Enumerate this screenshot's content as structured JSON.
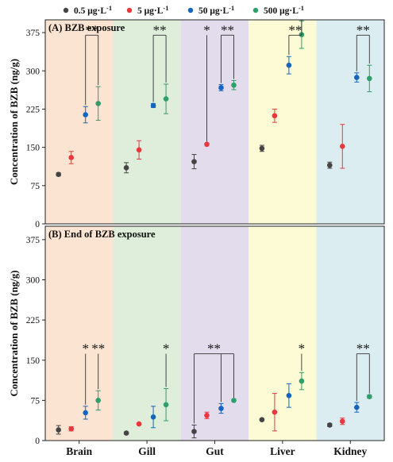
{
  "chart_data": {
    "type": "scatter",
    "legend": {
      "position": "top",
      "entries": [
        {
          "pre": "0.5 μg·L",
          "sup": "-1"
        },
        {
          "pre": "5 μg·L",
          "sup": "-1"
        },
        {
          "pre": "50 μg·L",
          "sup": "-1"
        },
        {
          "pre": "500 μg·L",
          "sup": "-1"
        }
      ]
    },
    "categories": [
      "Brain",
      "Gill",
      "Gut",
      "Liver",
      "Kidney"
    ],
    "background_colors": [
      "#fbe4d2",
      "#deeedb",
      "#e3dcec",
      "#fdfbd6",
      "#dcedf1"
    ],
    "series_colors": [
      "#444444",
      "#e8383d",
      "#1565c0",
      "#2e9e6a"
    ],
    "ylabel": "Concentration of BZB (ng/g)",
    "ylim": [
      0,
      400
    ],
    "yticks": [
      0,
      75,
      150,
      225,
      300,
      375
    ],
    "panels": [
      {
        "title": "(A)  BZB exposure",
        "series": [
          {
            "values": [
              97,
              110,
              122,
              148,
              115
            ],
            "errors": [
              3,
              10,
              14,
              6,
              6
            ]
          },
          {
            "values": [
              130,
              145,
              156,
              212,
              152
            ],
            "errors": [
              12,
              18,
              2,
              13,
              43
            ]
          },
          {
            "values": [
              214,
              232,
              267,
              311,
              287
            ],
            "errors": [
              16,
              4,
              6,
              17,
              9
            ]
          },
          {
            "values": [
              236,
              245,
              272,
              371,
              285
            ],
            "errors": [
              33,
              29,
              9,
              27,
              26
            ]
          }
        ],
        "significance": [
          {
            "label": "**",
            "category": 0,
            "type": "bracket",
            "from": 2,
            "to": 3,
            "y": 370
          },
          {
            "label": "**",
            "category": 1,
            "type": "bracket",
            "from": 2,
            "to": 3,
            "y": 370
          },
          {
            "label": "*",
            "category": 2,
            "type": "line",
            "from": 1,
            "y": 370
          },
          {
            "label": "**",
            "category": 2,
            "type": "bracket",
            "from": 2,
            "to": 3,
            "y": 370
          },
          {
            "label": "**",
            "category": 3,
            "type": "bracket",
            "from": 2,
            "to": 3,
            "y": 370
          },
          {
            "label": "**",
            "category": 4,
            "type": "bracket",
            "from": 2,
            "to": 3,
            "y": 370
          }
        ]
      },
      {
        "title": "(B)  End of BZB exposure",
        "series": [
          {
            "values": [
              20,
              14,
              17,
              39,
              29
            ],
            "errors": [
              8,
              2,
              12,
              2,
              3
            ]
          },
          {
            "values": [
              22,
              31,
              47,
              53,
              36
            ],
            "errors": [
              4,
              2,
              6,
              35,
              6
            ]
          },
          {
            "values": [
              52,
              44,
              60,
              84,
              62
            ],
            "errors": [
              12,
              20,
              9,
              22,
              9
            ]
          },
          {
            "values": [
              75,
              67,
              75,
              111,
              82
            ],
            "errors": [
              18,
              30,
              2,
              16,
              3
            ]
          }
        ],
        "significance": [
          {
            "label": "*",
            "category": 0,
            "type": "line",
            "from": 2,
            "y": 162
          },
          {
            "label": "**",
            "category": 0,
            "type": "line",
            "from": 3,
            "y": 162
          },
          {
            "label": "*",
            "category": 1,
            "type": "line",
            "from": 3,
            "y": 162
          },
          {
            "label": "**",
            "category": 2,
            "type": "bracket3",
            "from": 0,
            "mid": 2,
            "to": 3,
            "y": 162
          },
          {
            "label": "*",
            "category": 3,
            "type": "line",
            "from": 3,
            "y": 162
          },
          {
            "label": "**",
            "category": 4,
            "type": "bracket",
            "from": 2,
            "to": 3,
            "y": 162
          }
        ]
      }
    ]
  }
}
